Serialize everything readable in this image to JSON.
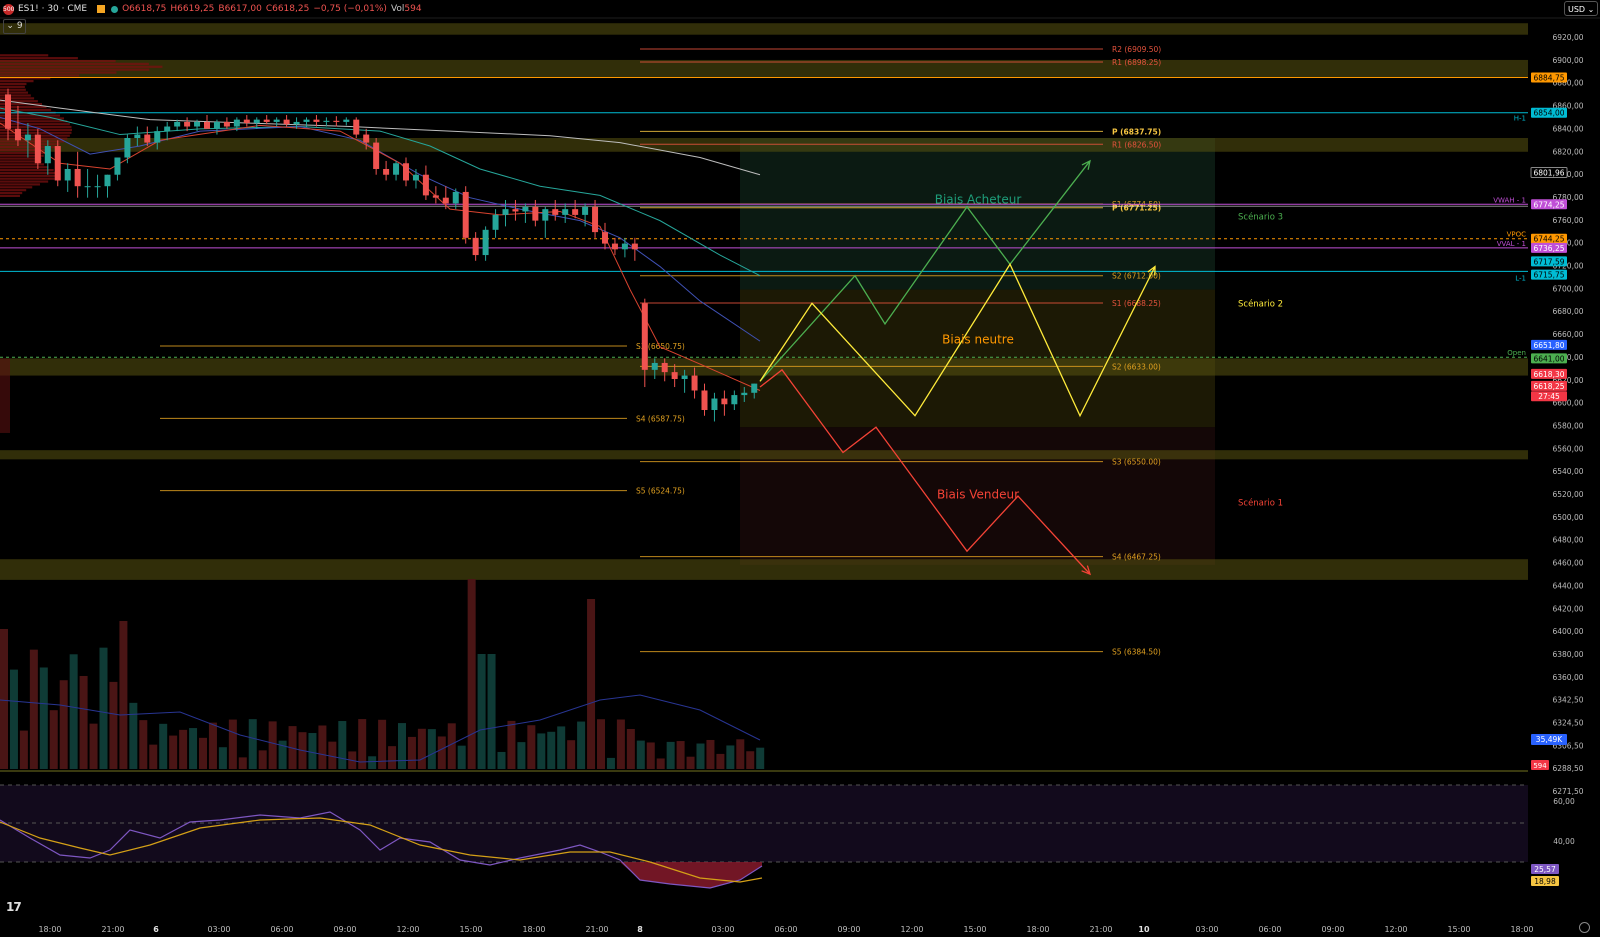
{
  "header": {
    "symbol_icon": "500",
    "title": "ES1! · 30 · CME",
    "open": "O6618,75",
    "high": "H6619,25",
    "low": "B6617,00",
    "close": "C6618,25",
    "change": "−0,75 (−0,01%)",
    "vol_label": "Vol",
    "vol_value": "594",
    "indicators_count": "9",
    "currency": "USD"
  },
  "colors": {
    "up": "#26a69a",
    "down": "#ef5350",
    "pivot": "#f5c542",
    "resistance": "#e5533d",
    "support": "#e0a020",
    "zone": "#5a5410",
    "scenario_buy": "#4caf50",
    "scenario_neutral": "#ffeb3b",
    "scenario_sell": "#f44336"
  },
  "chart_data": {
    "type": "candlestick",
    "price_axis": {
      "ticks": [
        "6920,00",
        "6900,00",
        "6880,00",
        "6860,00",
        "6840,00",
        "6820,00",
        "6800,00",
        "6780,00",
        "6760,00",
        "6740,00",
        "6720,00",
        "6700,00",
        "6680,00",
        "6660,00",
        "6640,00",
        "6620,00",
        "6600,00",
        "6580,00",
        "6560,00",
        "6540,00",
        "6520,00",
        "6500,00",
        "6480,00",
        "6460,00",
        "6440,00",
        "6420,00",
        "6400,00",
        "6380,00",
        "6360,00",
        "6342,50",
        "6324,50",
        "6306,50",
        "6288,50",
        "6271,50"
      ],
      "range": [
        6262,
        6932
      ]
    },
    "time_axis": [
      "18:00",
      "21:00",
      "6",
      "03:00",
      "06:00",
      "09:00",
      "12:00",
      "15:00",
      "18:00",
      "21:00",
      "8",
      "03:00",
      "06:00",
      "09:00",
      "12:00",
      "15:00",
      "18:00",
      "21:00",
      "10",
      "03:00",
      "06:00",
      "09:00",
      "12:00",
      "15:00",
      "18:00"
    ],
    "candles": [
      [
        6870,
        6875,
        6830,
        6840
      ],
      [
        6840,
        6860,
        6825,
        6830
      ],
      [
        6830,
        6845,
        6815,
        6835
      ],
      [
        6835,
        6840,
        6805,
        6810
      ],
      [
        6810,
        6830,
        6800,
        6825
      ],
      [
        6825,
        6830,
        6790,
        6795
      ],
      [
        6795,
        6810,
        6785,
        6805
      ],
      [
        6805,
        6820,
        6780,
        6790
      ],
      [
        6790,
        6805,
        6780,
        6790
      ],
      [
        6790,
        6800,
        6780,
        6790
      ],
      [
        6790,
        6800,
        6780,
        6800
      ],
      [
        6800,
        6815,
        6795,
        6815
      ],
      [
        6815,
        6835,
        6810,
        6832
      ],
      [
        6832,
        6842,
        6825,
        6835
      ],
      [
        6835,
        6842,
        6825,
        6828
      ],
      [
        6828,
        6842,
        6822,
        6838
      ],
      [
        6838,
        6846,
        6830,
        6842
      ],
      [
        6842,
        6848,
        6838,
        6846
      ],
      [
        6846,
        6850,
        6838,
        6842
      ],
      [
        6842,
        6848,
        6838,
        6846
      ],
      [
        6846,
        6852,
        6840,
        6840
      ],
      [
        6840,
        6848,
        6835,
        6846
      ],
      [
        6846,
        6850,
        6840,
        6842
      ],
      [
        6842,
        6850,
        6838,
        6848
      ],
      [
        6848,
        6852,
        6842,
        6845
      ],
      [
        6845,
        6850,
        6840,
        6848
      ],
      [
        6848,
        6852,
        6844,
        6846
      ],
      [
        6846,
        6850,
        6842,
        6848
      ],
      [
        6848,
        6852,
        6842,
        6844
      ],
      [
        6844,
        6850,
        6840,
        6846
      ],
      [
        6846,
        6850,
        6842,
        6848
      ],
      [
        6848,
        6852,
        6842,
        6846
      ],
      [
        6846,
        6850,
        6842,
        6847
      ],
      [
        6847,
        6851,
        6842,
        6846
      ],
      [
        6846,
        6850,
        6843,
        6848
      ],
      [
        6848,
        6850,
        6832,
        6835
      ],
      [
        6835,
        6840,
        6822,
        6828
      ],
      [
        6828,
        6832,
        6800,
        6805
      ],
      [
        6805,
        6812,
        6795,
        6800
      ],
      [
        6800,
        6812,
        6795,
        6810
      ],
      [
        6810,
        6815,
        6790,
        6795
      ],
      [
        6795,
        6805,
        6788,
        6800
      ],
      [
        6800,
        6808,
        6778,
        6782
      ],
      [
        6782,
        6790,
        6775,
        6780
      ],
      [
        6780,
        6790,
        6770,
        6775
      ],
      [
        6775,
        6788,
        6770,
        6785
      ],
      [
        6785,
        6790,
        6740,
        6745
      ],
      [
        6745,
        6750,
        6725,
        6730
      ],
      [
        6730,
        6755,
        6725,
        6752
      ],
      [
        6752,
        6770,
        6745,
        6765
      ],
      [
        6765,
        6778,
        6755,
        6770
      ],
      [
        6770,
        6778,
        6760,
        6768
      ],
      [
        6768,
        6775,
        6758,
        6772
      ],
      [
        6772,
        6778,
        6755,
        6760
      ],
      [
        6760,
        6772,
        6745,
        6770
      ],
      [
        6770,
        6778,
        6760,
        6765
      ],
      [
        6765,
        6775,
        6758,
        6770
      ],
      [
        6770,
        6778,
        6762,
        6765
      ],
      [
        6765,
        6775,
        6755,
        6772
      ],
      [
        6772,
        6778,
        6745,
        6750
      ],
      [
        6750,
        6758,
        6735,
        6740
      ],
      [
        6740,
        6745,
        6730,
        6735
      ],
      [
        6735,
        6745,
        6728,
        6740
      ],
      [
        6740,
        6745,
        6725,
        6735
      ],
      [
        6688,
        6692,
        6615,
        6630
      ],
      [
        6630,
        6640,
        6622,
        6636
      ],
      [
        6636,
        6640,
        6620,
        6628
      ],
      [
        6628,
        6635,
        6615,
        6622
      ],
      [
        6622,
        6630,
        6610,
        6625
      ],
      [
        6625,
        6632,
        6605,
        6612
      ],
      [
        6612,
        6618,
        6590,
        6595
      ],
      [
        6595,
        6610,
        6585,
        6605
      ],
      [
        6605,
        6612,
        6590,
        6600
      ],
      [
        6600,
        6612,
        6595,
        6608
      ],
      [
        6608,
        6615,
        6602,
        6610
      ],
      [
        6610,
        6618,
        6605,
        6618
      ]
    ],
    "volume_axis_label": "35,49K",
    "volume_value_label": "594",
    "rsi": {
      "levels": [
        "60,00",
        "40,00"
      ],
      "value_purple": "25,57",
      "value_yellow": "18,98"
    },
    "pivots": [
      {
        "label": "R2 (6909.50)",
        "price": 6909.5,
        "type": "resistance",
        "start": 0.4
      },
      {
        "label": "R1 (6898.25)",
        "price": 6898.25,
        "type": "resistance",
        "start": 0.4
      },
      {
        "label": "P (6837.75)",
        "price": 6837.75,
        "type": "pivot",
        "start": 0.4
      },
      {
        "label": "R1 (6826.50)",
        "price": 6826.5,
        "type": "resistance",
        "start": 0.4
      },
      {
        "label": "S1 (6774.50)",
        "price": 6774.5,
        "type": "support",
        "start": 0.4
      },
      {
        "label": "P (6771.25)",
        "price": 6771.25,
        "type": "pivot",
        "start": 0.4
      },
      {
        "label": "S2 (6712.00)",
        "price": 6712,
        "type": "support",
        "start": 0.4
      },
      {
        "label": "S1 (6688.25)",
        "price": 6688.25,
        "type": "resistance",
        "start": 0.4
      },
      {
        "label": "S3 (6650.75)",
        "price": 6650.75,
        "type": "support",
        "start": 0.1
      },
      {
        "label": "S2 (6633.00)",
        "price": 6633,
        "type": "support",
        "start": 0.4
      },
      {
        "label": "S4 (6587.75)",
        "price": 6587.75,
        "type": "support",
        "start": 0.1
      },
      {
        "label": "S3 (6550.00)",
        "price": 6550,
        "type": "support",
        "start": 0.4
      },
      {
        "label": "S5 (6524.75)",
        "price": 6524.75,
        "type": "support",
        "start": 0.1
      },
      {
        "label": "S4 (6467.25)",
        "price": 6467.25,
        "type": "support",
        "start": 0.4
      },
      {
        "label": "S5 (6384.50)",
        "price": 6384.5,
        "type": "support",
        "start": 0.4
      }
    ],
    "zones": [
      [
        6922,
        6932
      ],
      [
        6885,
        6900
      ],
      [
        6820,
        6832
      ],
      [
        6625,
        6640
      ],
      [
        6552,
        6560
      ],
      [
        6447,
        6465
      ]
    ],
    "key_lines": [
      {
        "label": "H-1",
        "price": 6854,
        "color": "#00bcd4"
      },
      {
        "label": "L-1",
        "price": 6715.75,
        "color": "#00bcd4"
      },
      {
        "label": "VWAH - 1",
        "price": 6774.25,
        "color": "#c04fd6"
      },
      {
        "label": "VPOC",
        "price": 6744.25,
        "color": "#ff9800"
      },
      {
        "label": "VVAL - 1",
        "price": 6736.25,
        "color": "#c04fd6"
      },
      {
        "label": "Open",
        "price": 6641,
        "color": "#4caf50"
      }
    ],
    "price_badges": [
      {
        "text": "6884,75",
        "price": 6884.75,
        "bg": "#ff9800",
        "fg": "#000"
      },
      {
        "text": "6854,00",
        "price": 6854,
        "bg": "#00bcd4",
        "fg": "#000"
      },
      {
        "text": "6801,96",
        "price": 6801.96,
        "bg": "#000",
        "fg": "#fff"
      },
      {
        "text": "6774,25",
        "price": 6774.25,
        "bg": "#c04fd6",
        "fg": "#fff"
      },
      {
        "text": "6744,25",
        "price": 6744.25,
        "bg": "#ff9800",
        "fg": "#000"
      },
      {
        "text": "6736,25",
        "price": 6736.25,
        "bg": "#c04fd6",
        "fg": "#fff"
      },
      {
        "text": "6717,59",
        "price": 6724.5,
        "bg": "#00bcd4",
        "fg": "#000"
      },
      {
        "text": "6715,75",
        "price": 6713,
        "bg": "#00bcd4",
        "fg": "#000"
      },
      {
        "text": "6651,80",
        "price": 6651.8,
        "bg": "#2962ff",
        "fg": "#fff"
      },
      {
        "text": "6641,00",
        "price": 6640,
        "bg": "#4caf50",
        "fg": "#000"
      },
      {
        "text": "6618,30",
        "price": 6626.5,
        "bg": "#f23645",
        "fg": "#fff"
      },
      {
        "text": "6618,25",
        "price": 6616,
        "bg": "#f23645",
        "fg": "#fff"
      },
      {
        "text": "27:45",
        "price": 6607,
        "bg": "#f23645",
        "fg": "#fff"
      }
    ],
    "scenarios": [
      {
        "label": "Biais Acheteur",
        "name": "Scénario 3",
        "color": "#4caf50"
      },
      {
        "label": "Biais neutre",
        "name": "Scénario 2",
        "color": "#ffeb3b"
      },
      {
        "label": "Biais Vendeur",
        "name": "Scénario 1",
        "color": "#f44336"
      }
    ]
  }
}
